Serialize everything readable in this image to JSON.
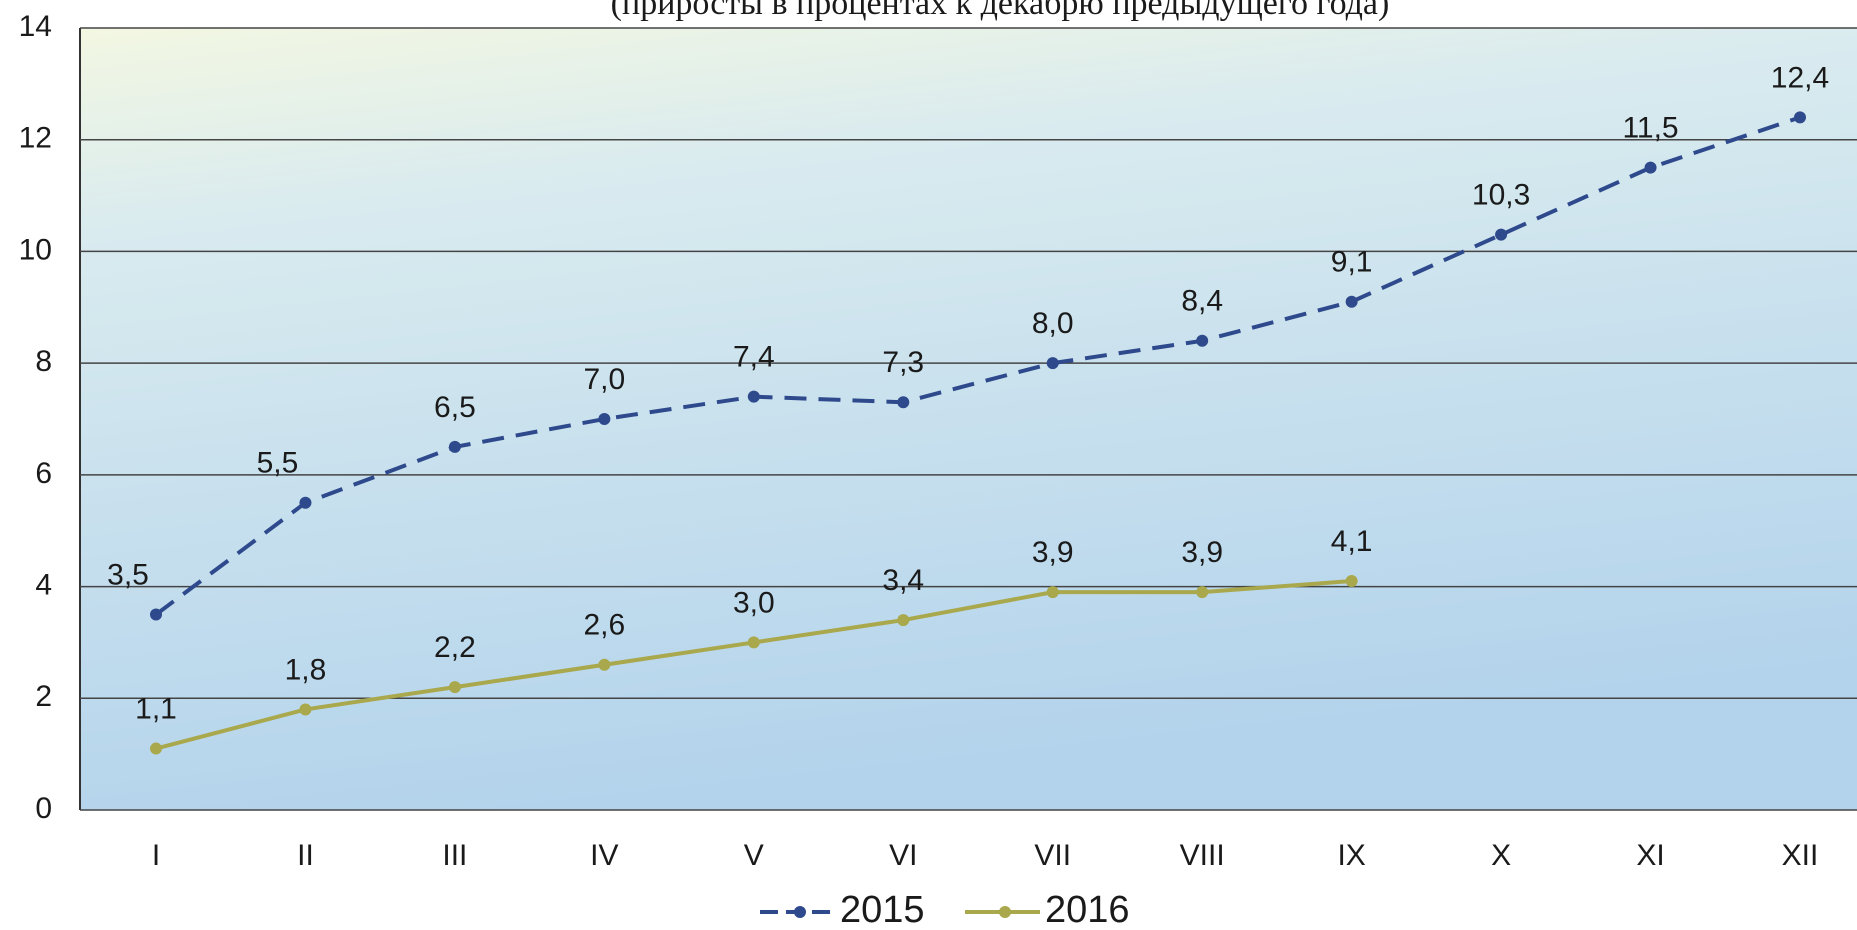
{
  "chart_data": {
    "type": "line",
    "subtitle": "(приросты в процентах к декабрю предыдущего года)",
    "categories": [
      "I",
      "II",
      "III",
      "IV",
      "V",
      "VI",
      "VII",
      "VIII",
      "IX",
      "X",
      "XI",
      "XII"
    ],
    "series": [
      {
        "name": "2015",
        "color": "#2e4a8c",
        "dash": true,
        "values": [
          3.5,
          5.5,
          6.5,
          7.0,
          7.4,
          7.3,
          8.0,
          8.4,
          9.1,
          10.3,
          11.5,
          12.4
        ],
        "value_labels": [
          "3,5",
          "5,5",
          "6,5",
          "7,0",
          "7,4",
          "7,3",
          "8,0",
          "8,4",
          "9,1",
          "10,3",
          "11,5",
          "12,4"
        ]
      },
      {
        "name": "2016",
        "color": "#a9a84c",
        "dash": false,
        "values": [
          1.1,
          1.8,
          2.2,
          2.6,
          3.0,
          3.4,
          3.9,
          3.9,
          4.1,
          null,
          null,
          null
        ],
        "value_labels": [
          "1,1",
          "1,8",
          "2,2",
          "2,6",
          "3,0",
          "3,4",
          "3,9",
          "3,9",
          "4,1",
          null,
          null,
          null
        ]
      }
    ],
    "ylim": [
      0,
      14
    ],
    "yticks": [
      0,
      2,
      4,
      6,
      8,
      10,
      12,
      14
    ],
    "grid": true,
    "legend": "bottom"
  }
}
